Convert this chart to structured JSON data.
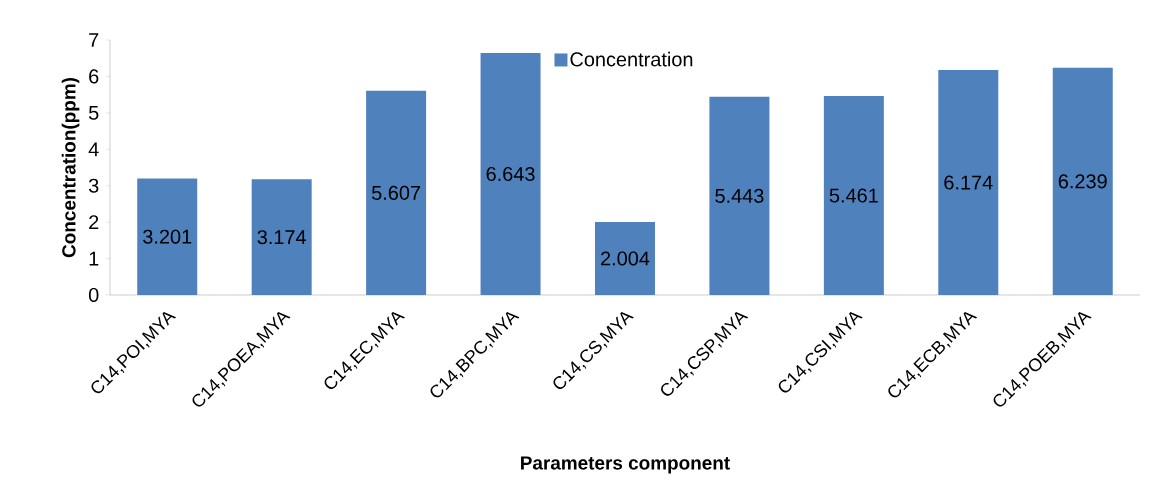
{
  "chart_data": {
    "type": "bar",
    "xlabel": "Parameters component",
    "ylabel": "Concentration(ppm)",
    "categories": [
      "C14,POI,MYA",
      "C14,POEA,MYA",
      "C14,EC,MYA",
      "C14,BPC,MYA",
      "C14,CS,MYA",
      "C14,CSP,MYA",
      "C14,CSI,MYA",
      "C14,ECB,MYA",
      "C14,POEB,MYA"
    ],
    "series": [
      {
        "name": "Concentration",
        "color": "#4f81bd",
        "values": [
          3.201,
          3.174,
          5.607,
          6.643,
          2.004,
          5.443,
          5.461,
          6.174,
          6.239
        ]
      }
    ],
    "ylim": [
      0,
      7
    ],
    "yticks": [
      0,
      1,
      2,
      3,
      4,
      5,
      6,
      7
    ],
    "data_labels": true,
    "legend": "top",
    "grid": false
  }
}
